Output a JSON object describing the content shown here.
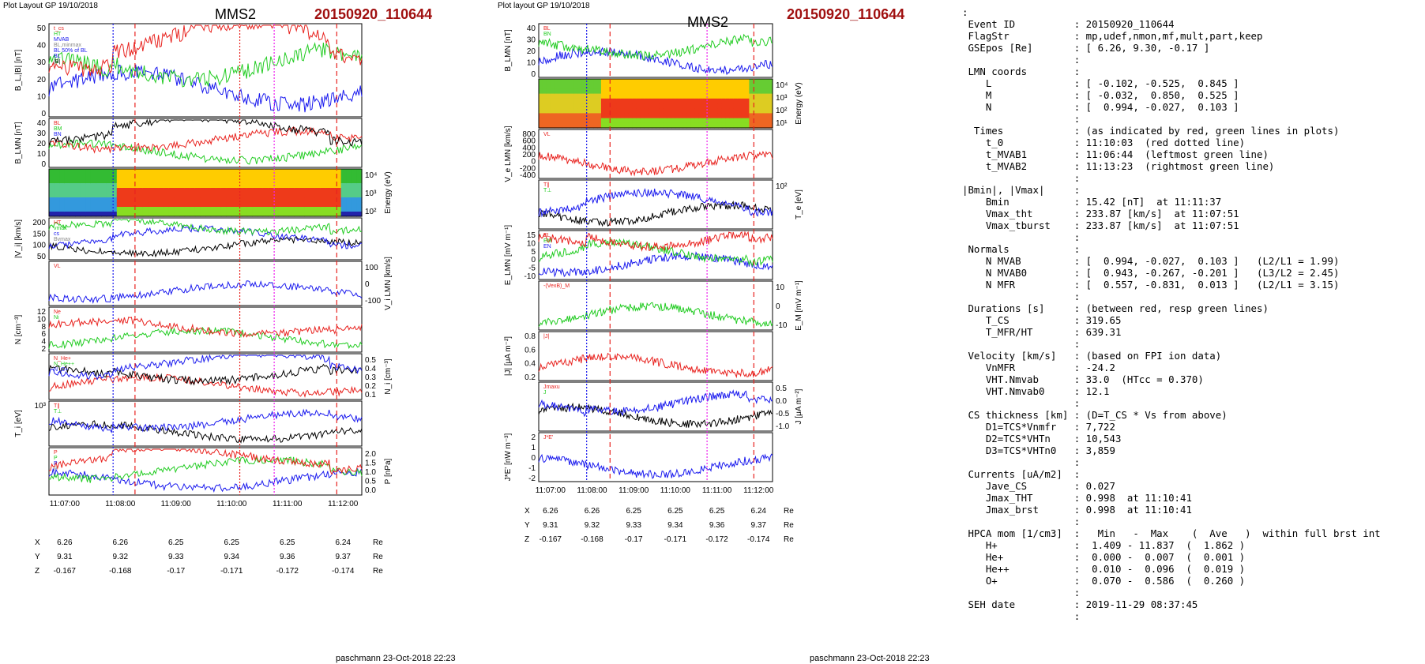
{
  "left_figure": {
    "layout_label": "Plot Layout GP 19/10/2018",
    "spacecraft": "MMS2",
    "event": "20150920_110644",
    "footer": "paschmann 23-Oct-2018 22:23",
    "time_ticks": [
      "11:07:00",
      "11:08:00",
      "11:09:00",
      "11:10:00",
      "11:11:00",
      "11:12:00"
    ],
    "pos_table": {
      "labels": [
        "X",
        "Y",
        "Z"
      ],
      "unit": "Re",
      "X": [
        "6.26",
        "6.26",
        "6.25",
        "6.25",
        "6.25",
        "6.24"
      ],
      "Y": [
        "9.31",
        "9.32",
        "9.33",
        "9.34",
        "9.36",
        "9.37"
      ],
      "Z": [
        "-0.167",
        "-0.168",
        "-0.17",
        "-0.171",
        "-0.172",
        "-0.174"
      ]
    },
    "panels": [
      {
        "name": "b-mag",
        "ylabel": "B_L,|B| [nT]",
        "ticks_left": [
          "50",
          "40",
          "30",
          "20",
          "10",
          "0"
        ],
        "legend": [
          "t_cs",
          "HT",
          "MVAB",
          "BL,minmax",
          "BL 50% of BL",
          "BL",
          "|B|"
        ]
      },
      {
        "name": "b-lmn",
        "ylabel": "B_LMN [nT]",
        "ticks_left": [
          "40",
          "30",
          "20",
          "10",
          "0"
        ],
        "legend": [
          "BL",
          "BM",
          "BN"
        ]
      },
      {
        "name": "ion-spectrogram",
        "ylabel_right": "Energy (eV)",
        "ticks_right": [
          "10⁴",
          "10³",
          "10²"
        ]
      },
      {
        "name": "vi-mag",
        "ylabel": "|V_i| [km/s]",
        "ticks_left": [
          "200",
          "150",
          "100",
          "50"
        ],
        "legend": [
          "HT",
          "vmax",
          "cs",
          "Bvmax"
        ]
      },
      {
        "name": "vi-lmn",
        "ylabel_right": "V_i LMN [km/s]",
        "ticks_right": [
          "100",
          "0",
          "-100"
        ],
        "legend": [
          "VL"
        ]
      },
      {
        "name": "density",
        "ylabel": "N [cm⁻³]",
        "ticks_left": [
          "12",
          "10",
          "8",
          "6",
          "4",
          "2"
        ],
        "legend": [
          "Ne",
          "Ni"
        ]
      },
      {
        "name": "hpca-density",
        "ylabel_right": "N_i [cm⁻³]",
        "ticks_right": [
          "0.5",
          "0.4",
          "0.3",
          "0.2",
          "0.1"
        ],
        "legend": [
          "N_He+",
          "N_He++",
          "N_O+"
        ]
      },
      {
        "name": "ion-temp",
        "ylabel": "T_i [eV]",
        "ticks_left": [
          "10³"
        ],
        "legend": [
          "T∥",
          "T⊥"
        ]
      },
      {
        "name": "pressure",
        "ylabel_right": "P [nPa]",
        "ticks_right": [
          "2.0",
          "1.5",
          "1.0",
          "0.5",
          "0.0"
        ],
        "legend": [
          "P",
          "P",
          "P",
          "P"
        ]
      }
    ]
  },
  "right_figure": {
    "layout_label": "Plot layout GP 19/10/2018",
    "spacecraft": "MMS2",
    "event": "20150920_110644",
    "footer": "paschmann 23-Oct-2018 22:23",
    "time_ticks": [
      "11:07:00",
      "11:08:00",
      "11:09:00",
      "11:10:00",
      "11:11:00",
      "11:12:00"
    ],
    "pos_table": {
      "labels": [
        "X",
        "Y",
        "Z"
      ],
      "unit": "Re",
      "X": [
        "6.26",
        "6.26",
        "6.25",
        "6.25",
        "6.25",
        "6.24"
      ],
      "Y": [
        "9.31",
        "9.32",
        "9.33",
        "9.34",
        "9.36",
        "9.37"
      ],
      "Z": [
        "-0.167",
        "-0.168",
        "-0.17",
        "-0.171",
        "-0.172",
        "-0.174"
      ]
    },
    "panels": [
      {
        "name": "b-lmn",
        "ylabel": "B_LMN [nT]",
        "ticks_left": [
          "40",
          "30",
          "20",
          "10",
          "0"
        ],
        "legend": [
          "BL",
          "BN"
        ]
      },
      {
        "name": "electron-spectrogram",
        "ylabel_right": "Energy (eV)",
        "ticks_right": [
          "10⁴",
          "10³",
          "10²",
          "10¹"
        ]
      },
      {
        "name": "ve-lmn",
        "ylabel": "V_e LMN [km/s]",
        "ticks_left": [
          "800",
          "600",
          "400",
          "200",
          "0",
          "-200",
          "-400"
        ],
        "legend": [
          "VL"
        ]
      },
      {
        "name": "electron-temp",
        "ylabel_right": "T_e [eV]",
        "ticks_right": [
          "10²"
        ],
        "legend": [
          "T∥",
          "T⊥"
        ]
      },
      {
        "name": "e-lmn",
        "ylabel": "E_LMN [mV m⁻¹]",
        "ticks_left": [
          "15",
          "10",
          "5",
          "0",
          "-5",
          "-10"
        ],
        "legend": [
          "EL",
          "EM",
          "EN"
        ]
      },
      {
        "name": "vexb",
        "ylabel_right": "E_M [mV m⁻¹]",
        "ticks_right": [
          "10",
          "0",
          "-10"
        ],
        "legend": [
          "-(VexB)_M"
        ]
      },
      {
        "name": "current-mag",
        "ylabel": "|J| [μA m⁻²]",
        "ticks_left": [
          "0.8",
          "0.6",
          "0.4",
          "0.2"
        ],
        "legend": [
          "|J|"
        ]
      },
      {
        "name": "current-lmn",
        "ylabel_right": "J [μA m⁻²]",
        "ticks_right": [
          "0.5",
          "0.0",
          "-0.5",
          "-1.0"
        ],
        "legend": [
          "Jmaxu",
          "J"
        ]
      },
      {
        "name": "jdote",
        "ylabel": "J*E' [nW m⁻³]",
        "ticks_left": [
          "2",
          "1",
          "0",
          "-1",
          "-2"
        ],
        "legend": [
          "J*E'"
        ]
      }
    ]
  },
  "info_lines": [
    ":",
    " Event ID          : 20150920_110644",
    " FlagStr           : mp,udef,nmon,mf,mult,part,keep",
    " GSEpos [Re]       : [ 6.26, 9.30, -0.17 ]",
    "                   :",
    " LMN coords        :",
    "    L              : [ -0.102, -0.525,  0.845 ]",
    "    M              : [ -0.032,  0.850,  0.525 ]",
    "    N              : [  0.994, -0.027,  0.103 ]",
    "                   :",
    "  Times            : (as indicated by red, green lines in plots)",
    "    t_0            : 11:10:03  (red dotted line)",
    "    t_MVAB1        : 11:06:44  (leftmost green line)",
    "    t_MVAB2        : 11:13:23  (rightmost green line)",
    "                   :",
    "|Bmin|, |Vmax|     :",
    "    Bmin           : 15.42 [nT]  at 11:11:37",
    "    Vmax_tht       : 233.87 [km/s]  at 11:07:51",
    "    Vmax_tburst    : 233.87 [km/s]  at 11:07:51",
    "                   :",
    " Normals           :",
    "    N MVAB         : [  0.994, -0.027,  0.103 ]   (L2/L1 = 1.99)",
    "    N MVAB0        : [  0.943, -0.267, -0.201 ]   (L3/L2 = 2.45)",
    "    N MFR          : [  0.557, -0.831,  0.013 ]   (L2/L1 = 3.15)",
    "                   :",
    " Durations [s]     : (between red, resp green lines)",
    "    T_CS           : 319.65",
    "    T_MFR/HT       : 639.31",
    "                   :",
    " Velocity [km/s]   : (based on FPI ion data)",
    "    VnMFR          : -24.2",
    "    VHT.Nmvab      : 33.0  (HTcc = 0.370)",
    "    VHT.Nmvab0     : 12.1",
    "                   :",
    " CS thickness [km] : (D=T_CS * Vs from above)",
    "    D1=TCS*Vnmfr   : 7,722",
    "    D2=TCS*VHTn    : 10,543",
    "    D3=TCS*VHTn0   : 3,859",
    "                   :",
    " Currents [uA/m2]  :",
    "    Jave_CS        : 0.027",
    "    Jmax_THT       : 0.998  at 11:10:41",
    "    Jmax_brst      : 0.998  at 11:10:41",
    "                   :",
    " HPCA mom [1/cm3]  :   Min   -  Max    (  Ave   )  within full brst int",
    "    H+             :  1.409 - 11.837  (  1.862 )",
    "    He+            :  0.000 -  0.007  (  0.001 )",
    "    He++           :  0.010 -  0.096  (  0.019 )",
    "    O+             :  0.070 -  0.586  (  0.260 )",
    "                   :",
    " SEH date          : 2019-11-29 08:37:45",
    "                   :"
  ],
  "colors": {
    "red": "#e8231f",
    "green": "#22cc22",
    "blue": "#1a1aee",
    "black": "#000000",
    "gray": "#888888",
    "magenta": "#ee22ee",
    "title_red": "#a01010"
  }
}
